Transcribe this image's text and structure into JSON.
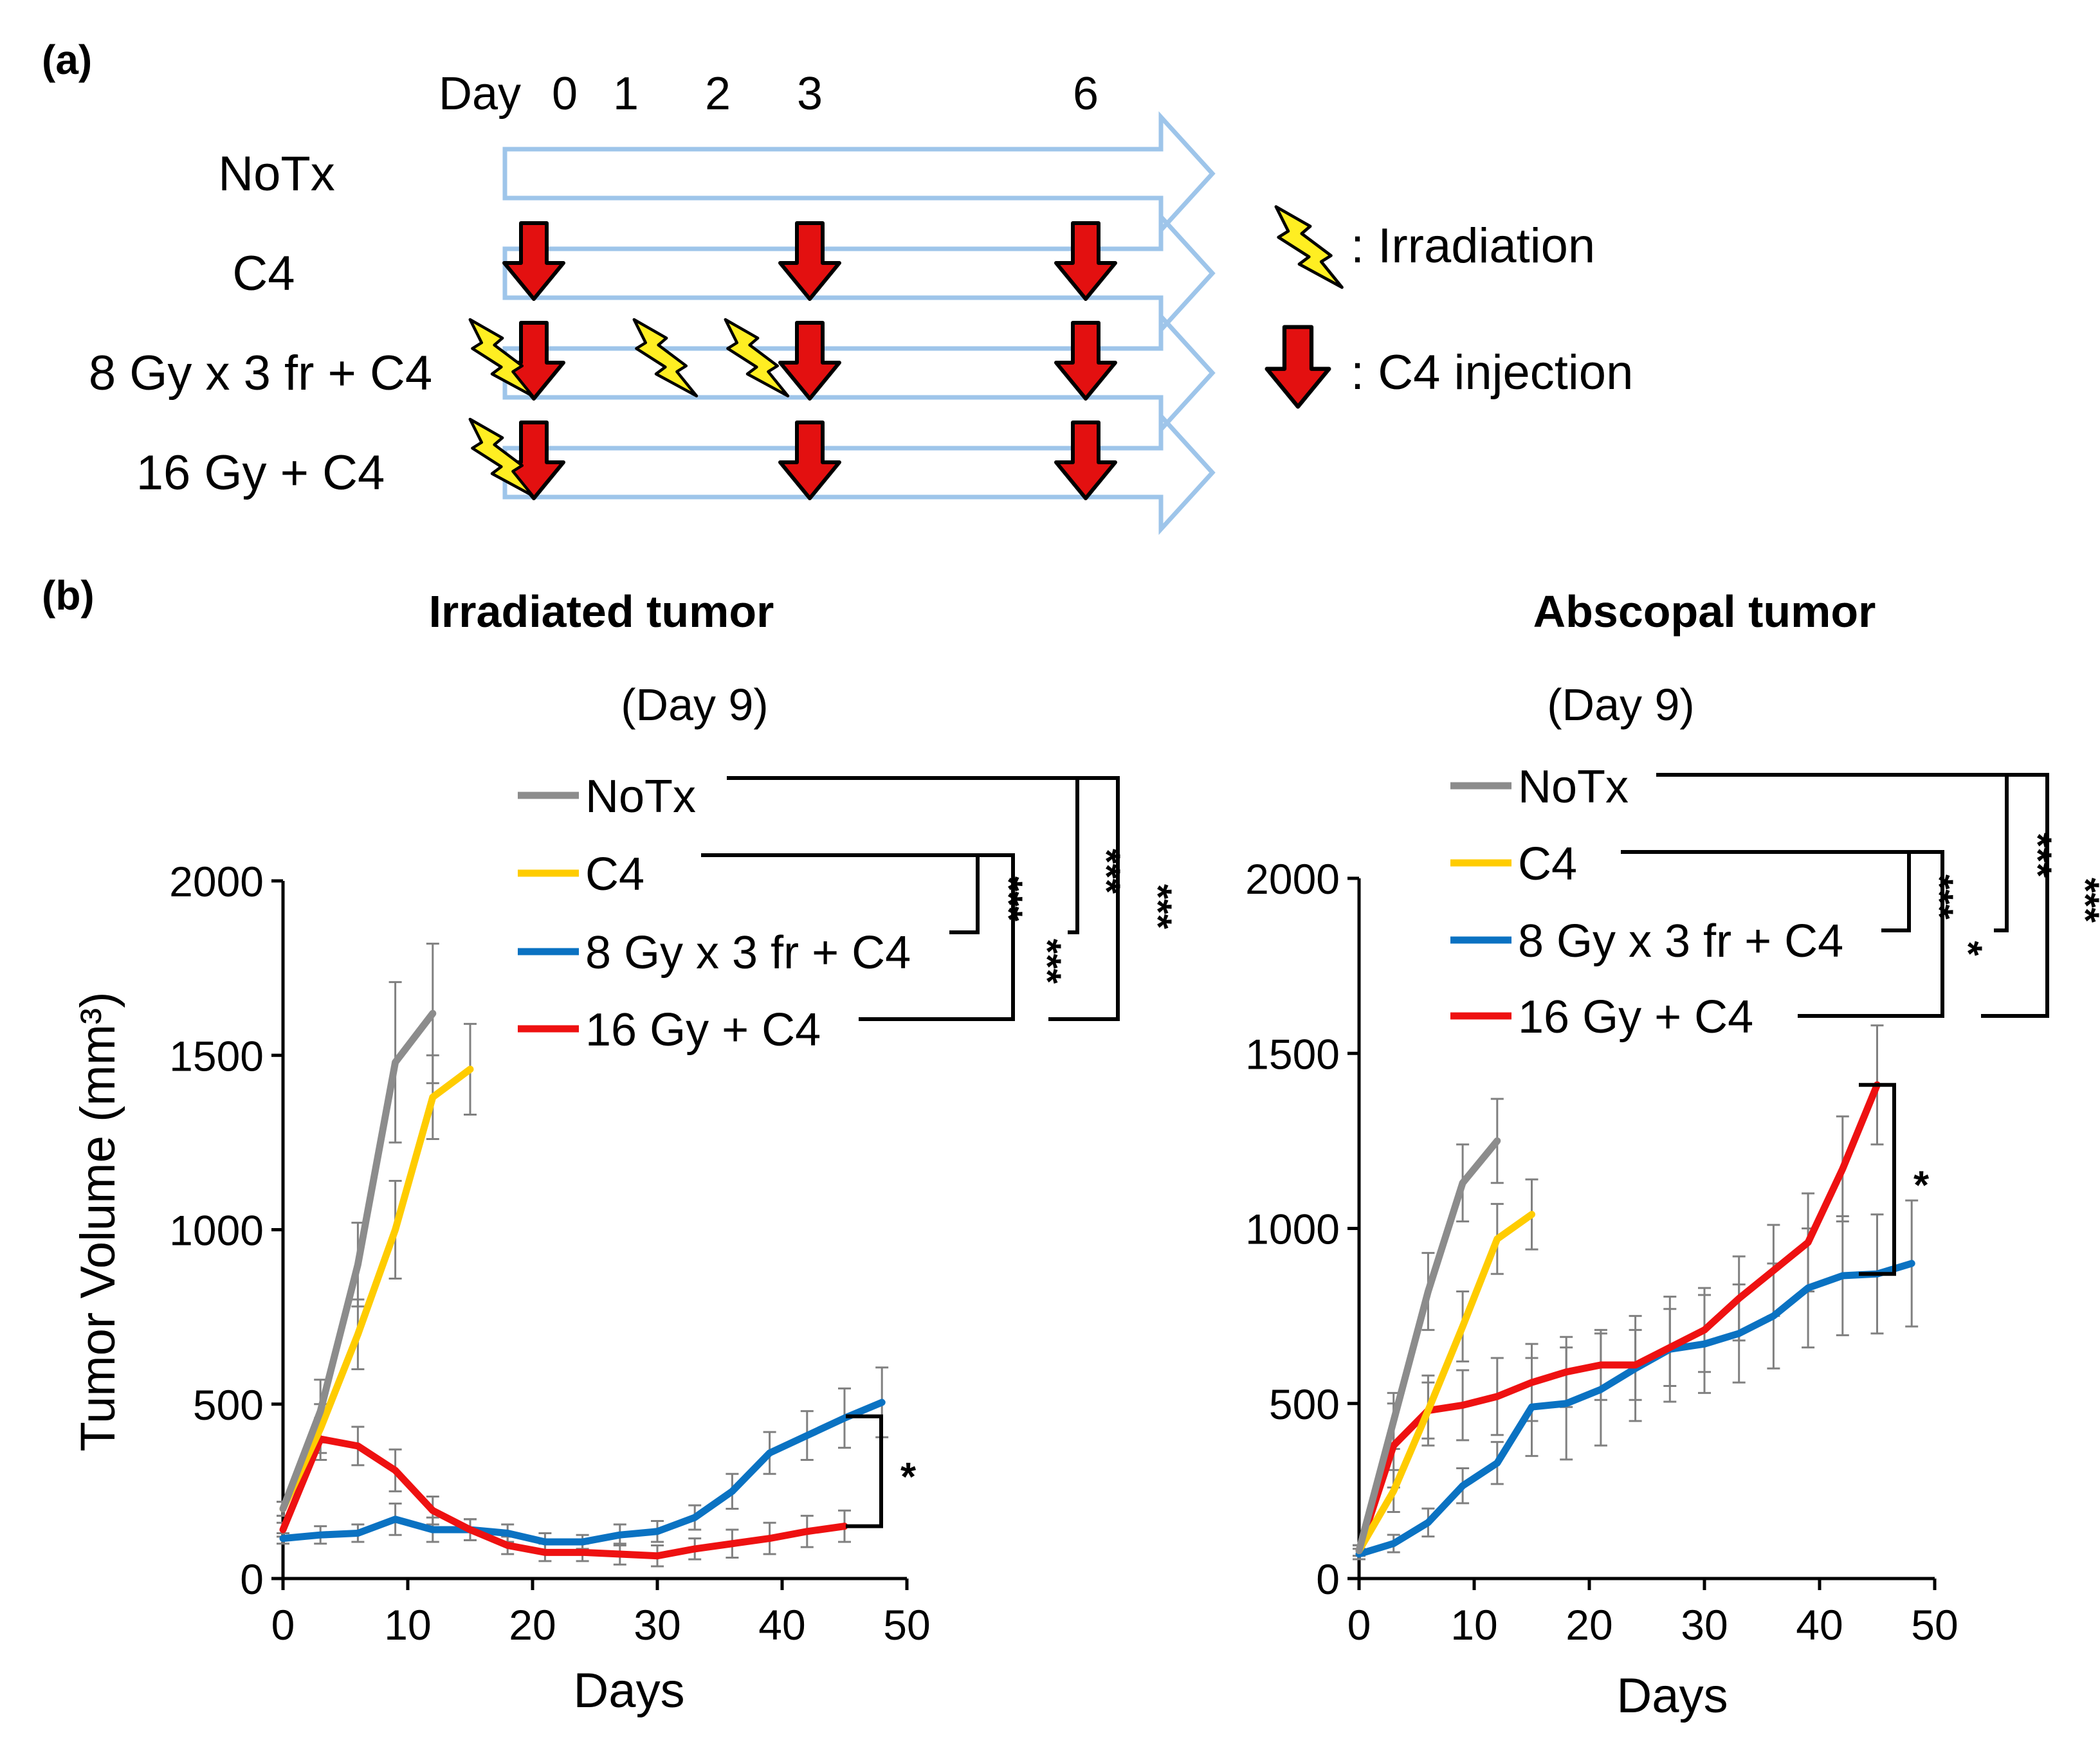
{
  "panel_a": {
    "label": "(a)",
    "day_prefix": "Day",
    "day_ticks": [
      {
        "text": "0",
        "day": 0
      },
      {
        "text": "1",
        "day": 1
      },
      {
        "text": "2",
        "day": 2
      },
      {
        "text": "3",
        "day": 3
      },
      {
        "text": "6",
        "day": 6
      }
    ],
    "rows": [
      {
        "label": "NoTx",
        "irradiation_days": [],
        "c4_days": []
      },
      {
        "label": "C4",
        "irradiation_days": [],
        "c4_days": [
          0,
          3,
          6
        ]
      },
      {
        "label": "8 Gy x 3 fr + C4",
        "irradiation_days": [
          0,
          1,
          2
        ],
        "c4_days": [
          0,
          3,
          6
        ]
      },
      {
        "label": "16 Gy + C4",
        "irradiation_days": [
          0
        ],
        "c4_days": [
          0,
          3,
          6
        ]
      }
    ],
    "legend": [
      {
        "icon": "lightning-icon",
        "text": ": Irradiation"
      },
      {
        "icon": "red-arrow-icon",
        "text": ": C4 injection"
      }
    ]
  },
  "panel_b": {
    "label": "(b)",
    "series_legend": [
      "NoTx",
      "C4",
      "8 Gy x 3 fr + C4",
      "16 Gy + C4"
    ],
    "colors": {
      "NoTx": "#8c8c8c",
      "C4": "#ffcc00",
      "8Gy": "#0a72c2",
      "16Gy": "#ee1111",
      "bolt": "#ffee22",
      "arrow": "#e31010",
      "timeline": "#9ec5ea"
    }
  },
  "chart_data": [
    {
      "type": "line",
      "title": "Irradiated tumor",
      "subtitle": "(Day 9)",
      "xlabel": "Days",
      "ylabel": "Tumor Volume (mm³)",
      "xlim": [
        0,
        50
      ],
      "ylim": [
        0,
        2000
      ],
      "xticks": [
        "0",
        "10",
        "20",
        "30",
        "40",
        "50"
      ],
      "yticks": [
        "0",
        "500",
        "1000",
        "1500",
        "2000"
      ],
      "series": [
        {
          "name": "NoTx",
          "x": [
            0,
            3,
            6,
            9,
            12
          ],
          "values": [
            200,
            480,
            900,
            1480,
            1620
          ],
          "err": [
            20,
            90,
            120,
            230,
            200
          ]
        },
        {
          "name": "C4",
          "x": [
            0,
            3,
            6,
            9,
            12,
            15
          ],
          "values": [
            200,
            430,
            700,
            1000,
            1380,
            1460
          ],
          "err": [
            20,
            70,
            100,
            140,
            120,
            130
          ]
        },
        {
          "name": "8 Gy x 3 fr + C4",
          "x": [
            0,
            3,
            6,
            9,
            12,
            15,
            18,
            21,
            24,
            27,
            30,
            33,
            36,
            39,
            42,
            45,
            48
          ],
          "values": [
            115,
            125,
            130,
            170,
            140,
            140,
            130,
            105,
            105,
            125,
            135,
            175,
            250,
            360,
            410,
            460,
            505
          ],
          "err": [
            15,
            25,
            25,
            45,
            35,
            30,
            25,
            25,
            20,
            30,
            30,
            35,
            50,
            60,
            70,
            85,
            100
          ]
        },
        {
          "name": "16 Gy + C4",
          "x": [
            0,
            3,
            6,
            9,
            12,
            15,
            18,
            21,
            24,
            27,
            30,
            33,
            36,
            39,
            42,
            45
          ],
          "values": [
            140,
            400,
            380,
            310,
            195,
            140,
            95,
            75,
            75,
            70,
            65,
            85,
            100,
            115,
            135,
            150
          ],
          "err": [
            20,
            60,
            55,
            60,
            40,
            30,
            25,
            25,
            25,
            30,
            30,
            30,
            40,
            45,
            45,
            45
          ]
        }
      ],
      "significance": [
        {
          "a": "C4",
          "b": "8 Gy x 3 fr + C4",
          "label": "***"
        },
        {
          "a": "C4",
          "b": "16 Gy + C4",
          "label": "***"
        },
        {
          "a": "NoTx",
          "b": "8 Gy x 3 fr + C4",
          "label": "***"
        },
        {
          "a": "NoTx",
          "b": "16 Gy + C4",
          "label": "***"
        },
        {
          "a": "8 Gy x 3 fr + C4",
          "b": "16 Gy + C4",
          "label": "*",
          "at_day": 46
        }
      ]
    },
    {
      "type": "line",
      "title": "Abscopal tumor",
      "subtitle": "(Day 9)",
      "xlabel": "Days",
      "ylabel": "",
      "xlim": [
        0,
        50
      ],
      "ylim": [
        0,
        2000
      ],
      "xticks": [
        "0",
        "10",
        "20",
        "30",
        "40",
        "50"
      ],
      "yticks": [
        "0",
        "500",
        "1000",
        "1500",
        "2000"
      ],
      "series": [
        {
          "name": "NoTx",
          "x": [
            0,
            3,
            6,
            9,
            12
          ],
          "values": [
            80,
            450,
            820,
            1130,
            1250
          ],
          "err": [
            15,
            80,
            110,
            110,
            120
          ]
        },
        {
          "name": "C4",
          "x": [
            0,
            3,
            6,
            9,
            12,
            15
          ],
          "values": [
            80,
            250,
            480,
            720,
            970,
            1040
          ],
          "err": [
            15,
            60,
            80,
            100,
            100,
            100
          ]
        },
        {
          "name": "8 Gy x 3 fr + C4",
          "x": [
            0,
            3,
            6,
            9,
            12,
            15,
            18,
            21,
            24,
            27,
            30,
            33,
            36,
            39,
            42,
            45,
            48
          ],
          "values": [
            70,
            100,
            160,
            265,
            330,
            490,
            500,
            540,
            600,
            655,
            670,
            700,
            750,
            830,
            865,
            870,
            900
          ],
          "err": [
            15,
            25,
            40,
            50,
            60,
            140,
            160,
            160,
            150,
            150,
            140,
            140,
            150,
            170,
            170,
            170,
            180
          ]
        },
        {
          "name": "16 Gy + C4",
          "x": [
            0,
            3,
            6,
            9,
            12,
            15,
            18,
            21,
            24,
            27,
            30,
            33,
            36,
            39,
            42,
            45
          ],
          "values": [
            80,
            380,
            480,
            495,
            520,
            560,
            590,
            610,
            610,
            660,
            710,
            800,
            880,
            960,
            1170,
            1410
          ],
          "err": [
            15,
            120,
            100,
            100,
            110,
            110,
            100,
            100,
            100,
            110,
            120,
            120,
            130,
            140,
            150,
            170
          ]
        }
      ],
      "significance": [
        {
          "a": "C4",
          "b": "8 Gy x 3 fr + C4",
          "label": "***"
        },
        {
          "a": "C4",
          "b": "16 Gy + C4",
          "label": "*"
        },
        {
          "a": "NoTx",
          "b": "8 Gy x 3 fr + C4",
          "label": "***"
        },
        {
          "a": "NoTx",
          "b": "16 Gy + C4",
          "label": "***"
        },
        {
          "a": "8 Gy x 3 fr + C4",
          "b": "16 Gy + C4",
          "label": "*",
          "at_day": 46
        }
      ]
    }
  ]
}
